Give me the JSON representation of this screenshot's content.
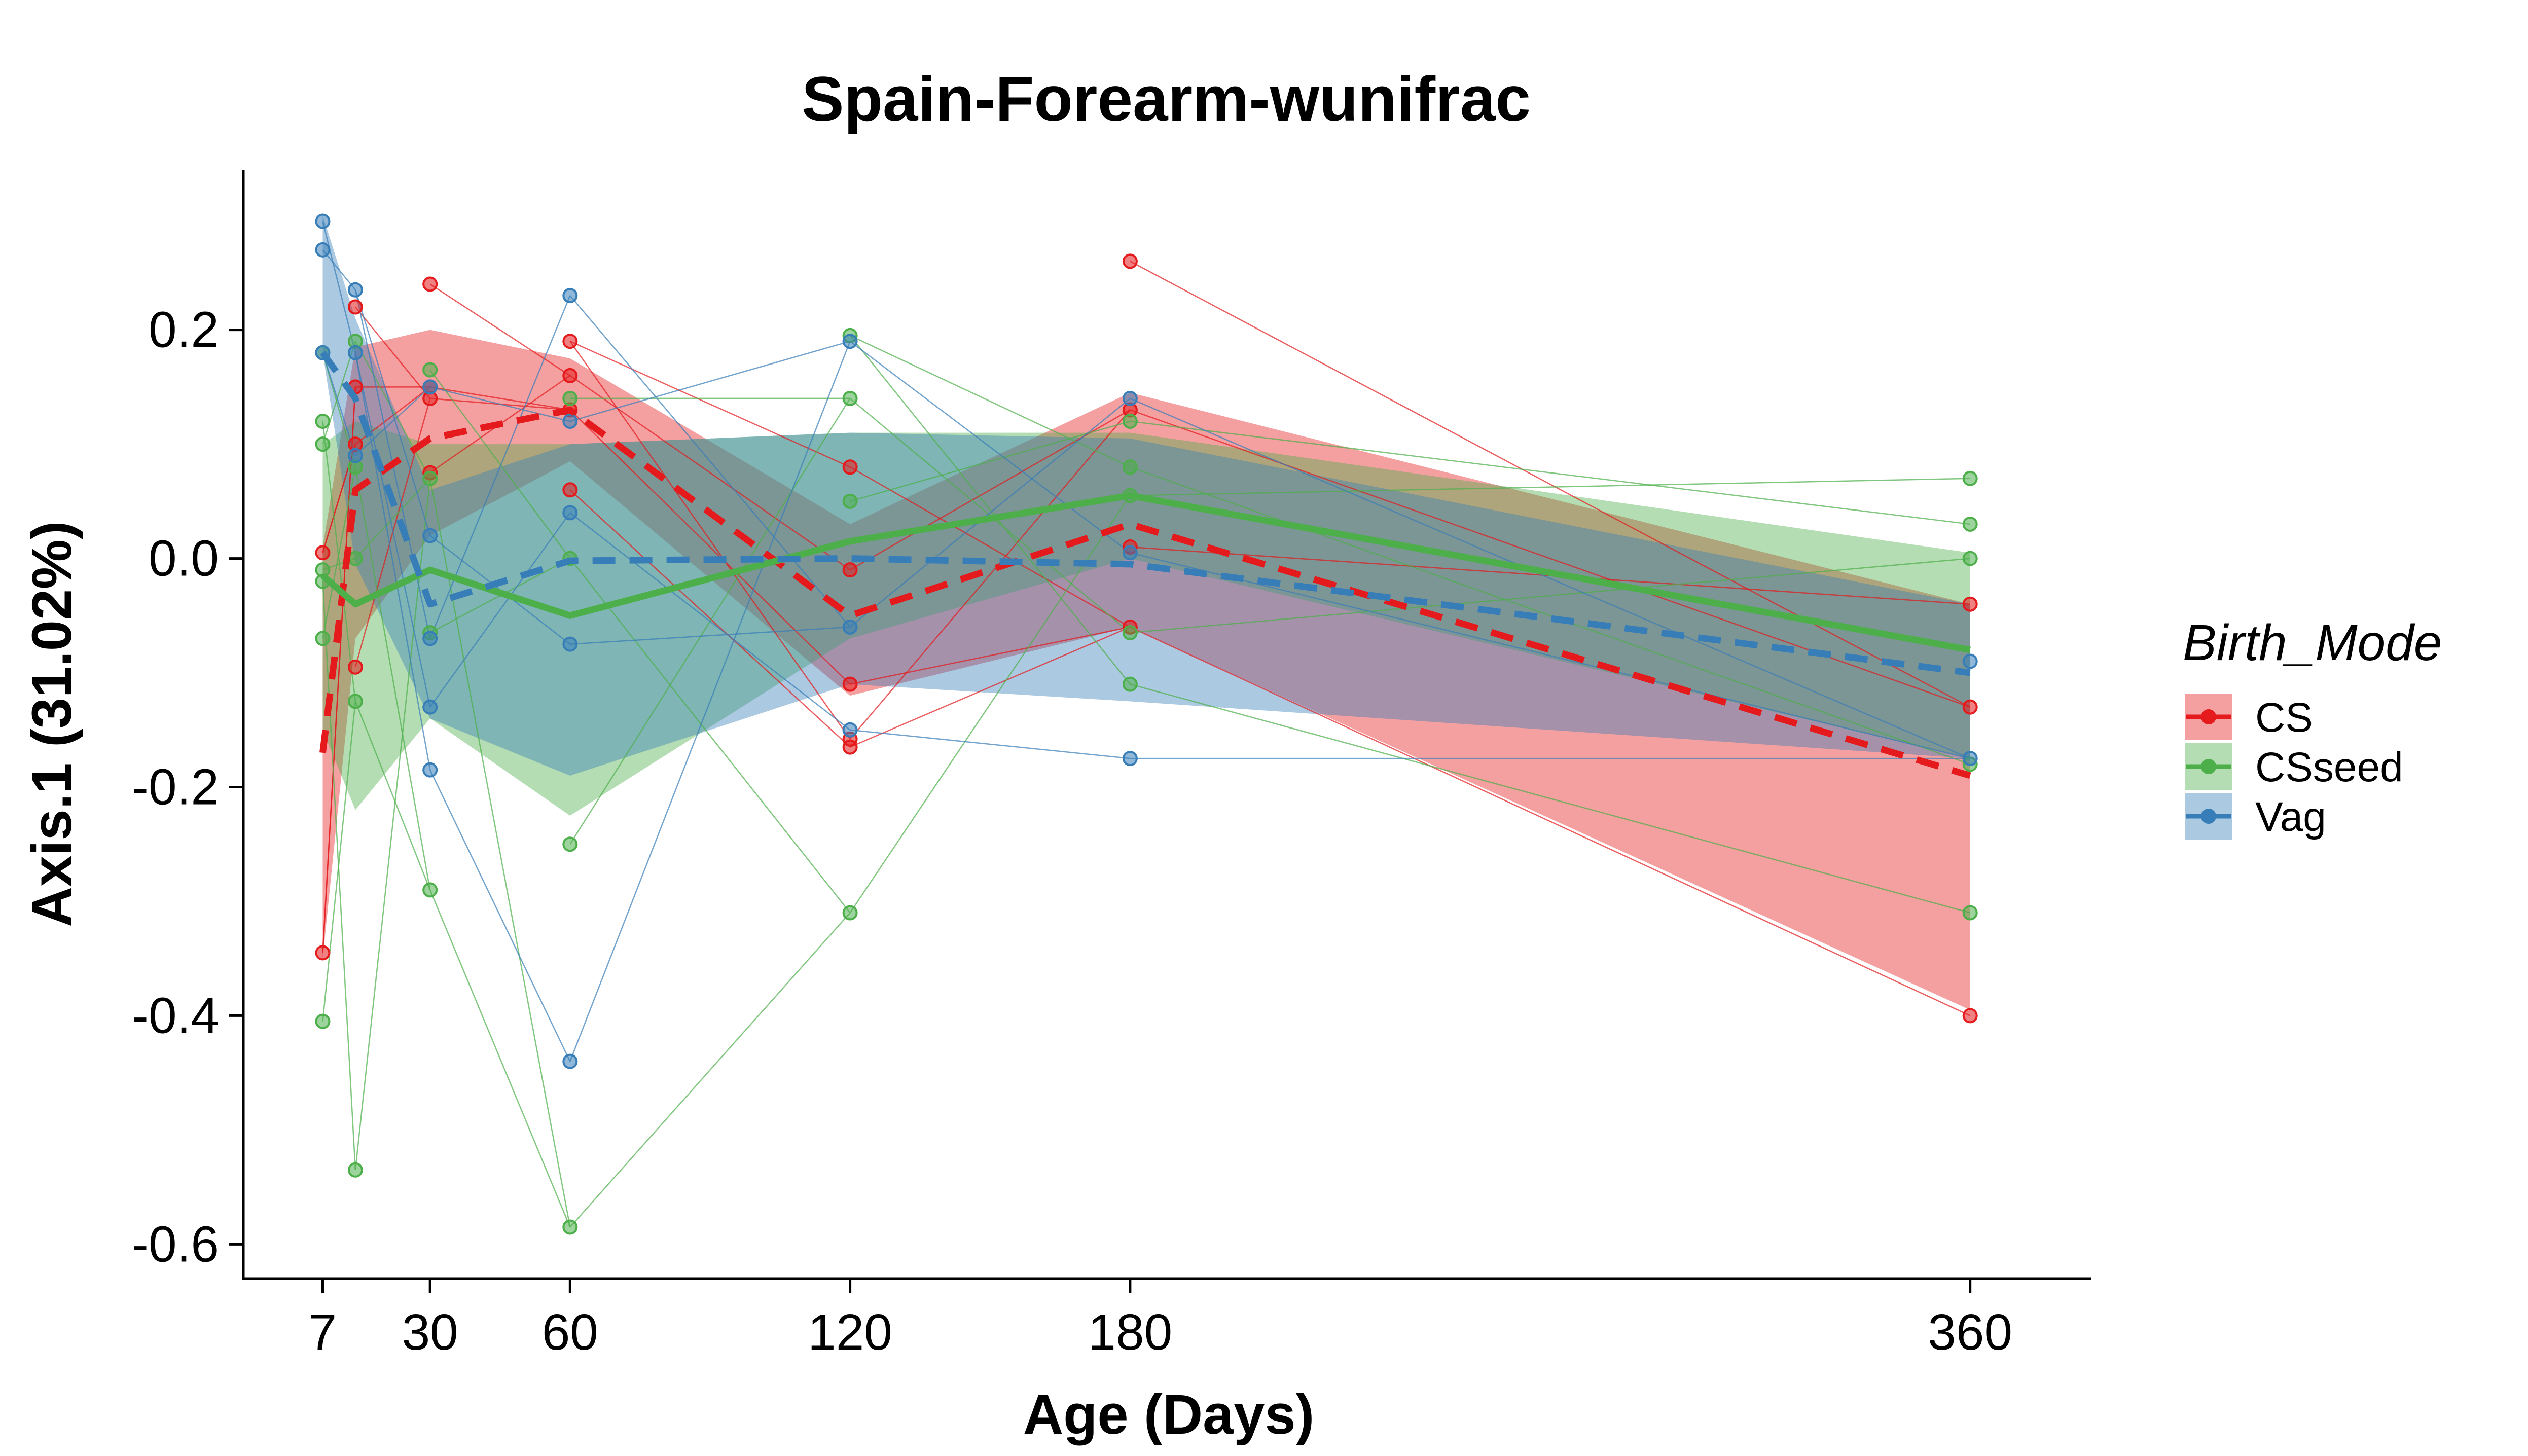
{
  "chart_data": {
    "type": "line",
    "title": "Spain-Forearm-wunifrac",
    "xlabel": "Age (Days)",
    "ylabel": "Axis.1 (31.02%)",
    "x_ticks": [
      7,
      30,
      60,
      120,
      180,
      360
    ],
    "y_ticks": [
      0.2,
      0.0,
      -0.2,
      -0.4,
      -0.6
    ],
    "y_tick_labels": [
      "0.2",
      "0.0",
      "-0.2",
      "-0.4",
      "-0.6"
    ],
    "xlim": [
      -10,
      386
    ],
    "ylim": [
      -0.63,
      0.34
    ],
    "grid": false,
    "legend": {
      "title": "Birth_Mode",
      "position": "right",
      "entries": [
        "CS",
        "CSseed",
        "Vag"
      ]
    },
    "colors": {
      "CS": "#E41A1C",
      "CSseed": "#4DAF4A",
      "Vag": "#377EB8"
    },
    "series": [
      {
        "name": "CS",
        "line_style": "dashed",
        "mean": [
          [
            7,
            -0.17
          ],
          [
            14,
            0.06
          ],
          [
            30,
            0.105
          ],
          [
            60,
            0.13
          ],
          [
            120,
            -0.05
          ],
          [
            180,
            0.03
          ],
          [
            360,
            -0.19
          ]
        ],
        "ribbon_upper": [
          [
            7,
            0.01
          ],
          [
            14,
            0.185
          ],
          [
            30,
            0.2
          ],
          [
            60,
            0.175
          ],
          [
            120,
            0.03
          ],
          [
            180,
            0.145
          ],
          [
            360,
            -0.04
          ]
        ],
        "ribbon_lower": [
          [
            7,
            -0.35
          ],
          [
            14,
            -0.07
          ],
          [
            30,
            0.02
          ],
          [
            60,
            0.085
          ],
          [
            120,
            -0.12
          ],
          [
            180,
            -0.06
          ],
          [
            360,
            -0.395
          ]
        ],
        "points": [
          [
            7,
            -0.345
          ],
          [
            7,
            0.005
          ],
          [
            14,
            0.22
          ],
          [
            14,
            0.15
          ],
          [
            14,
            -0.095
          ],
          [
            14,
            0.1
          ],
          [
            30,
            0.24
          ],
          [
            30,
            0.14
          ],
          [
            30,
            0.075
          ],
          [
            30,
            0.15
          ],
          [
            60,
            0.19
          ],
          [
            60,
            0.16
          ],
          [
            60,
            0.06
          ],
          [
            60,
            0.13
          ],
          [
            120,
            -0.165
          ],
          [
            120,
            -0.158
          ],
          [
            120,
            -0.11
          ],
          [
            120,
            -0.01
          ],
          [
            120,
            0.08
          ],
          [
            180,
            0.26
          ],
          [
            180,
            -0.06
          ],
          [
            180,
            0.01
          ],
          [
            180,
            0.13
          ],
          [
            360,
            -0.4
          ],
          [
            360,
            -0.13
          ],
          [
            360,
            -0.04
          ]
        ]
      },
      {
        "name": "CSseed",
        "line_style": "solid",
        "mean": [
          [
            7,
            -0.015
          ],
          [
            14,
            -0.04
          ],
          [
            30,
            -0.01
          ],
          [
            60,
            -0.05
          ],
          [
            120,
            0.015
          ],
          [
            180,
            0.055
          ],
          [
            360,
            -0.08
          ]
        ],
        "ribbon_upper": [
          [
            7,
            0.1
          ],
          [
            14,
            0.12
          ],
          [
            30,
            0.1
          ],
          [
            60,
            0.1
          ],
          [
            120,
            0.11
          ],
          [
            180,
            0.11
          ],
          [
            360,
            0.005
          ]
        ],
        "ribbon_lower": [
          [
            7,
            -0.15
          ],
          [
            14,
            -0.22
          ],
          [
            30,
            -0.14
          ],
          [
            60,
            -0.225
          ],
          [
            120,
            -0.07
          ],
          [
            180,
            0.0
          ],
          [
            360,
            -0.175
          ]
        ],
        "points": [
          [
            7,
            0.18
          ],
          [
            7,
            0.12
          ],
          [
            7,
            0.1
          ],
          [
            7,
            -0.01
          ],
          [
            7,
            -0.02
          ],
          [
            7,
            -0.07
          ],
          [
            7,
            -0.405
          ],
          [
            14,
            0.19
          ],
          [
            14,
            0.08
          ],
          [
            14,
            0.0
          ],
          [
            14,
            -0.125
          ],
          [
            14,
            -0.535
          ],
          [
            30,
            0.165
          ],
          [
            30,
            0.07
          ],
          [
            30,
            -0.065
          ],
          [
            30,
            -0.29
          ],
          [
            60,
            0.14
          ],
          [
            60,
            0.0
          ],
          [
            60,
            -0.25
          ],
          [
            60,
            -0.585
          ],
          [
            120,
            0.195
          ],
          [
            120,
            0.14
          ],
          [
            120,
            0.05
          ],
          [
            120,
            -0.31
          ],
          [
            180,
            0.12
          ],
          [
            180,
            0.08
          ],
          [
            180,
            0.055
          ],
          [
            180,
            -0.065
          ],
          [
            180,
            -0.11
          ],
          [
            360,
            0.07
          ],
          [
            360,
            0.03
          ],
          [
            360,
            0.0
          ],
          [
            360,
            -0.18
          ],
          [
            360,
            -0.31
          ]
        ]
      },
      {
        "name": "Vag",
        "line_style": "dashed",
        "mean": [
          [
            7,
            0.18
          ],
          [
            14,
            0.14
          ],
          [
            30,
            -0.04
          ],
          [
            60,
            -0.002
          ],
          [
            120,
            0.0
          ],
          [
            180,
            -0.005
          ],
          [
            360,
            -0.1
          ]
        ],
        "ribbon_upper": [
          [
            7,
            0.3
          ],
          [
            14,
            0.21
          ],
          [
            30,
            0.06
          ],
          [
            60,
            0.1
          ],
          [
            120,
            0.11
          ],
          [
            180,
            0.105
          ],
          [
            360,
            -0.04
          ]
        ],
        "ribbon_lower": [
          [
            7,
            0.18
          ],
          [
            14,
            -0.005
          ],
          [
            30,
            -0.14
          ],
          [
            60,
            -0.19
          ],
          [
            120,
            -0.11
          ],
          [
            180,
            -0.125
          ],
          [
            360,
            -0.175
          ]
        ],
        "points": [
          [
            7,
            0.295
          ],
          [
            7,
            0.27
          ],
          [
            7,
            0.18
          ],
          [
            14,
            0.235
          ],
          [
            14,
            0.18
          ],
          [
            14,
            0.09
          ],
          [
            30,
            0.15
          ],
          [
            30,
            0.02
          ],
          [
            30,
            -0.07
          ],
          [
            30,
            -0.13
          ],
          [
            30,
            -0.185
          ],
          [
            60,
            0.23
          ],
          [
            60,
            0.12
          ],
          [
            60,
            0.04
          ],
          [
            60,
            -0.075
          ],
          [
            60,
            -0.44
          ],
          [
            120,
            0.19
          ],
          [
            120,
            -0.06
          ],
          [
            120,
            -0.15
          ],
          [
            180,
            0.14
          ],
          [
            180,
            0.005
          ],
          [
            180,
            -0.175
          ],
          [
            360,
            -0.09
          ],
          [
            360,
            -0.175
          ]
        ]
      }
    ]
  }
}
